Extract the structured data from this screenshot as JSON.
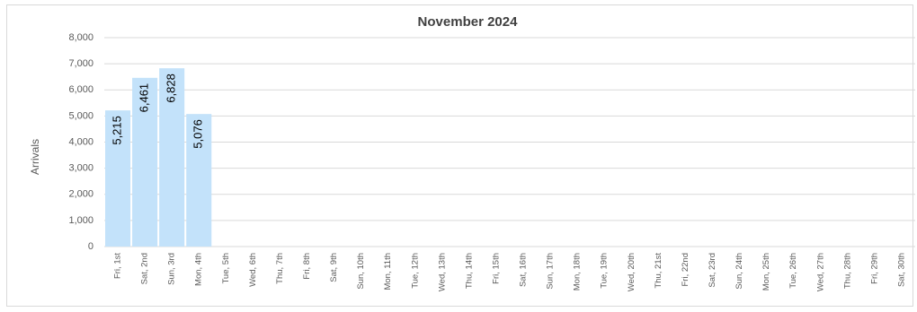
{
  "chart_data": {
    "type": "bar",
    "title": "November 2024",
    "y_label": "Arrivals",
    "categories": [
      "Fri, 1st",
      "Sat, 2nd",
      "Sun, 3rd",
      "Mon, 4th",
      "Tue, 5th",
      "Wed, 6th",
      "Thu, 7th",
      "Fri, 8th",
      "Sat, 9th",
      "Sun, 10th",
      "Mon, 11th",
      "Tue, 12th",
      "Wed, 13th",
      "Thu, 14th",
      "Fri, 15th",
      "Sat, 16th",
      "Sun, 17th",
      "Mon, 18th",
      "Tue, 19th",
      "Wed, 20th",
      "Thu, 21st",
      "Fri, 22nd",
      "Sat, 23rd",
      "Sun, 24th",
      "Mon, 25th",
      "Tue, 26th",
      "Wed, 27th",
      "Thu, 28th",
      "Fri, 29th",
      "Sat, 30th"
    ],
    "values": [
      5215,
      6461,
      6828,
      5076,
      null,
      null,
      null,
      null,
      null,
      null,
      null,
      null,
      null,
      null,
      null,
      null,
      null,
      null,
      null,
      null,
      null,
      null,
      null,
      null,
      null,
      null,
      null,
      null,
      null,
      null
    ],
    "value_labels": [
      "5,215",
      "6,461",
      "6,828",
      "5,076",
      null,
      null,
      null,
      null,
      null,
      null,
      null,
      null,
      null,
      null,
      null,
      null,
      null,
      null,
      null,
      null,
      null,
      null,
      null,
      null,
      null,
      null,
      null,
      null,
      null,
      null
    ],
    "color": "#c3e2fa",
    "ylim": [
      0,
      8000
    ],
    "yticks": [
      0,
      {
        "value": 1000,
        "label": "1,000"
      },
      {
        "value": 2000,
        "label": "2,000"
      },
      {
        "value": 3000,
        "label": "3,000"
      },
      {
        "value": 4000,
        "label": "4,000"
      },
      {
        "value": 5000,
        "label": "5,000"
      },
      {
        "value": 6000,
        "label": "6,000"
      },
      {
        "value": 7000,
        "label": "7,000"
      },
      {
        "value": 8000,
        "label": "8,000"
      }
    ],
    "grid": true
  }
}
